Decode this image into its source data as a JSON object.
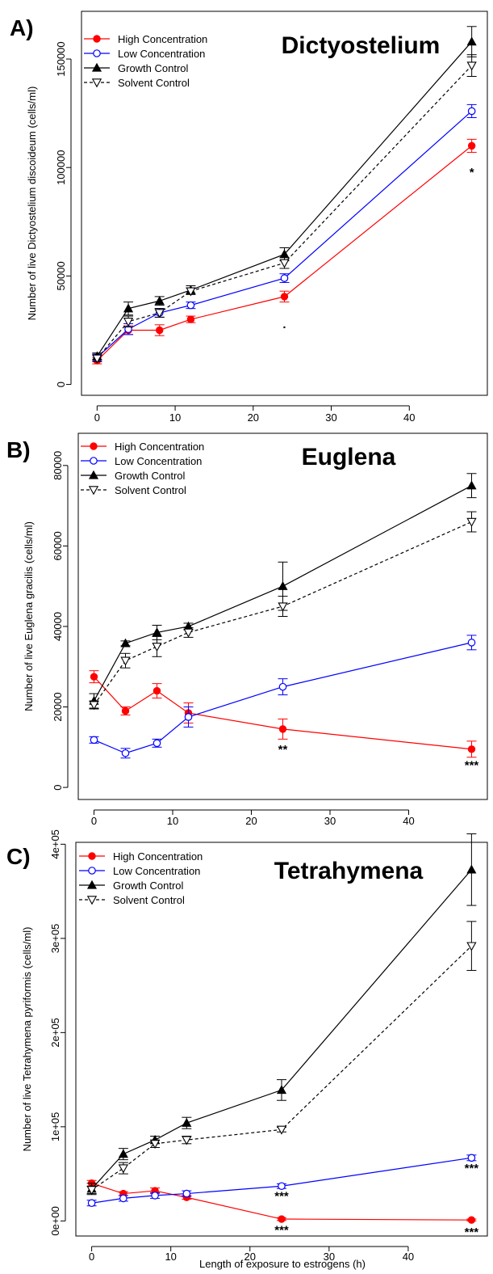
{
  "figure": {
    "xlabel": "Length of exposure to estrogens (h)"
  },
  "chart_data": [
    {
      "type": "line",
      "panel": "A)",
      "title": "Dictyostelium",
      "ylabel": "Number of live Dictyostelium discoideum (cells/ml)",
      "x": [
        0,
        4,
        8,
        12,
        24,
        48
      ],
      "xlim": [
        -2,
        50
      ],
      "ylim": [
        -5000,
        172000
      ],
      "xticks": [
        0,
        10,
        20,
        30,
        40
      ],
      "yticks": [
        0,
        50000,
        100000,
        150000
      ],
      "ytick_labels": [
        "0",
        "50000",
        "100000",
        "150000"
      ],
      "legend_position": "top-left",
      "series": [
        {
          "name": "High Concentration",
          "color": "#ff0000",
          "marker": "filled-circle",
          "dash": "solid",
          "values": [
            11000,
            25000,
            25000,
            30000,
            40500,
            110000
          ],
          "errors": [
            1500,
            2000,
            2500,
            1500,
            2500,
            3000
          ]
        },
        {
          "name": "Low Concentration",
          "color": "#0000ff",
          "marker": "open-circle",
          "dash": "solid",
          "values": [
            12500,
            25500,
            33000,
            36500,
            49000,
            126000
          ],
          "errors": [
            1500,
            2500,
            2000,
            1500,
            2000,
            3000
          ]
        },
        {
          "name": "Growth Control",
          "color": "#000000",
          "marker": "filled-triangle",
          "dash": "solid",
          "values": [
            13000,
            35000,
            38500,
            43500,
            60000,
            158000
          ],
          "errors": [
            1500,
            3000,
            2000,
            2000,
            3000,
            7000
          ]
        },
        {
          "name": "Solvent Control",
          "color": "#000000",
          "marker": "open-triangle-down",
          "dash": "dotted",
          "values": [
            12000,
            29000,
            33000,
            43000,
            56000,
            147000
          ],
          "errors": [
            1500,
            2500,
            2000,
            1500,
            2500,
            5000
          ]
        }
      ],
      "annotations": [
        {
          "text": ".",
          "x": 24,
          "y": 26000
        },
        {
          "text": "*",
          "x": 48,
          "y": 96000
        }
      ]
    },
    {
      "type": "line",
      "panel": "B)",
      "title": "Euglena",
      "ylabel": "Number of live Euglena gracilis (cells/ml)",
      "x": [
        0,
        4,
        8,
        12,
        24,
        48
      ],
      "xlim": [
        -2,
        50
      ],
      "ylim": [
        -3000,
        88000
      ],
      "xticks": [
        0,
        10,
        20,
        30,
        40
      ],
      "yticks": [
        0,
        20000,
        40000,
        60000,
        80000
      ],
      "ytick_labels": [
        "0",
        "20000",
        "40000",
        "60000",
        "80000"
      ],
      "legend_position": "top-left",
      "series": [
        {
          "name": "High Concentration",
          "color": "#ff0000",
          "marker": "filled-circle",
          "dash": "solid",
          "values": [
            27500,
            19000,
            24000,
            18500,
            14500,
            9500
          ],
          "errors": [
            1500,
            1000,
            1800,
            2500,
            2500,
            2000
          ]
        },
        {
          "name": "Low Concentration",
          "color": "#0000ff",
          "marker": "open-circle",
          "dash": "solid",
          "values": [
            11800,
            8500,
            11000,
            17500,
            25000,
            36000
          ],
          "errors": [
            800,
            1200,
            1000,
            2500,
            2000,
            1800
          ]
        },
        {
          "name": "Growth Control",
          "color": "#000000",
          "marker": "filled-triangle",
          "dash": "solid",
          "values": [
            21500,
            35800,
            38500,
            40000,
            50000,
            75000
          ],
          "errors": [
            1800,
            600,
            1800,
            800,
            6000,
            3000
          ]
        },
        {
          "name": "Solvent Control",
          "color": "#000000",
          "marker": "open-triangle-down",
          "dash": "dotted",
          "values": [
            20500,
            31500,
            35000,
            38500,
            45000,
            66000
          ],
          "errors": [
            1000,
            1800,
            2500,
            1200,
            2500,
            2500
          ]
        }
      ],
      "annotations": [
        {
          "text": "**",
          "x": 24,
          "y": 8500
        },
        {
          "text": "***",
          "x": 48,
          "y": 4500
        }
      ]
    },
    {
      "type": "line",
      "panel": "C)",
      "title": "Tetrahymena",
      "ylabel": "Number of live Tetrahymena pyriformis (cells/ml)",
      "x": [
        0,
        4,
        8,
        12,
        24,
        48
      ],
      "xlim": [
        -2,
        50
      ],
      "ylim": [
        -16000,
        402000
      ],
      "xticks": [
        0,
        10,
        20,
        30,
        40
      ],
      "yticks": [
        0,
        100000,
        200000,
        300000,
        400000
      ],
      "ytick_labels": [
        "0e+00",
        "1e+05",
        "2e+05",
        "3e+05",
        "4e+05"
      ],
      "legend_position": "top-left",
      "series": [
        {
          "name": "High Concentration",
          "color": "#ff0000",
          "marker": "filled-circle",
          "dash": "solid",
          "values": [
            40000,
            29000,
            32000,
            25000,
            2000,
            1000
          ],
          "errors": [
            3000,
            2000,
            3000,
            2000,
            1500,
            1000
          ]
        },
        {
          "name": "Low Concentration",
          "color": "#0000ff",
          "marker": "open-circle",
          "dash": "solid",
          "values": [
            19000,
            24000,
            27000,
            29000,
            37000,
            67000
          ],
          "errors": [
            3000,
            3000,
            3000,
            3000,
            2500,
            3000
          ]
        },
        {
          "name": "Growth Control",
          "color": "#000000",
          "marker": "filled-triangle",
          "dash": "solid",
          "values": [
            34000,
            71000,
            86000,
            104000,
            139000,
            373000
          ],
          "errors": [
            6000,
            6000,
            4000,
            6000,
            11000,
            38000
          ]
        },
        {
          "name": "Solvent Control",
          "color": "#000000",
          "marker": "open-triangle-down",
          "dash": "dotted",
          "values": [
            33000,
            56000,
            82000,
            86000,
            97000,
            292000
          ],
          "errors": [
            4000,
            6000,
            4000,
            4000,
            2500,
            26000
          ]
        }
      ],
      "annotations": [
        {
          "text": "***",
          "x": 24,
          "y": 22000
        },
        {
          "text": "***",
          "x": 48,
          "y": 52000
        },
        {
          "text": "***",
          "x": 24,
          "y": -14000
        },
        {
          "text": "***",
          "x": 48,
          "y": -16000
        }
      ]
    }
  ]
}
